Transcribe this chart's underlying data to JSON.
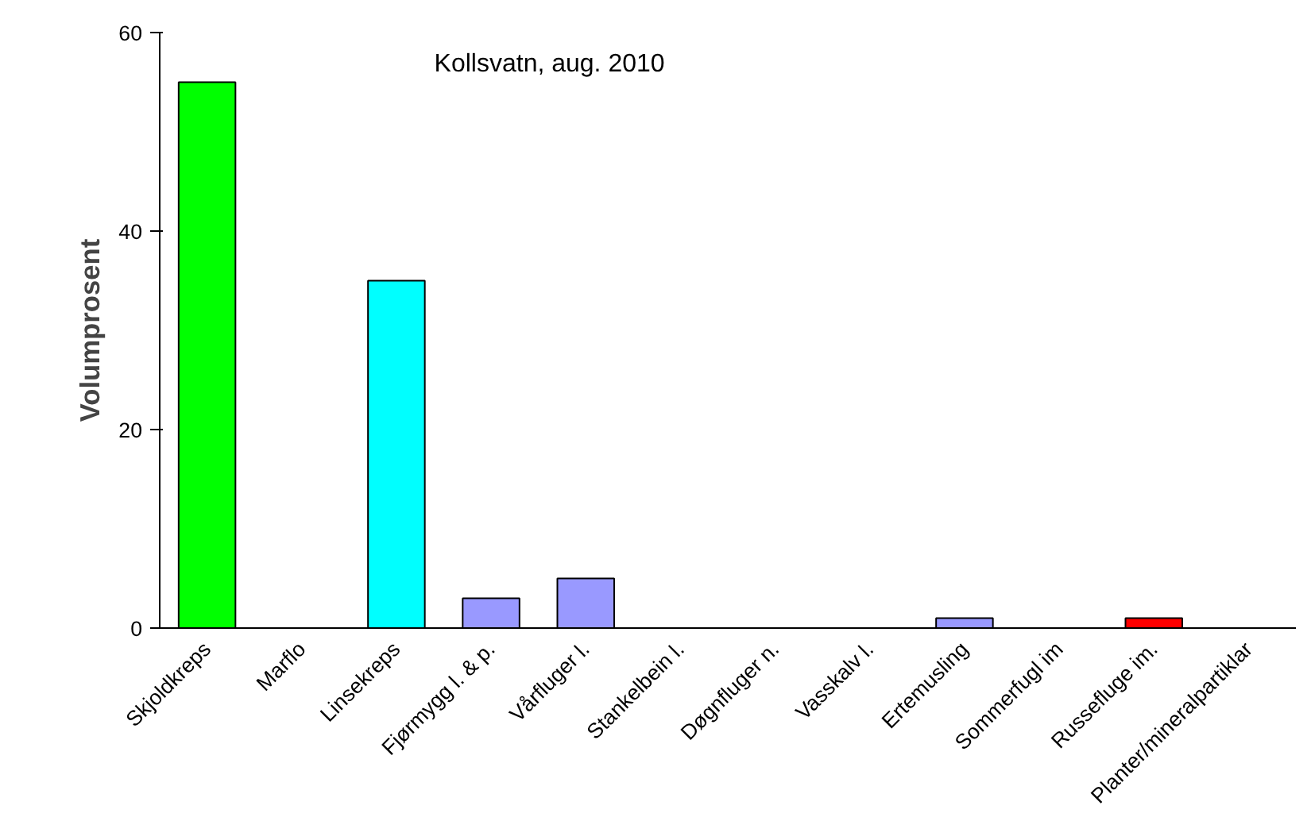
{
  "chart_data": {
    "type": "bar",
    "title": "Kollsvatn, aug. 2010",
    "ylabel": "Volumprosent",
    "categories": [
      "Skjoldkreps",
      "Marflo",
      "Linsekreps",
      "Fjørmygg l. & p.",
      "Vårfluger l.",
      "Stankelbein l.",
      "Døgnfluger n.",
      "Vasskalv l.",
      "Ertemusling",
      "Sommerfugl im",
      "Russefluge im.",
      "Planter/mineralpartiklar"
    ],
    "values": [
      55,
      0,
      35,
      3,
      5,
      0,
      0,
      0,
      1,
      0,
      1,
      0
    ],
    "colors": [
      "#00ff00",
      null,
      "#00ffff",
      "#9999ff",
      "#9999ff",
      null,
      null,
      null,
      "#9999ff",
      null,
      "#ff0000",
      null
    ],
    "ylim": [
      0,
      60
    ],
    "yticks": [
      0,
      20,
      40,
      60
    ],
    "grid": false
  }
}
